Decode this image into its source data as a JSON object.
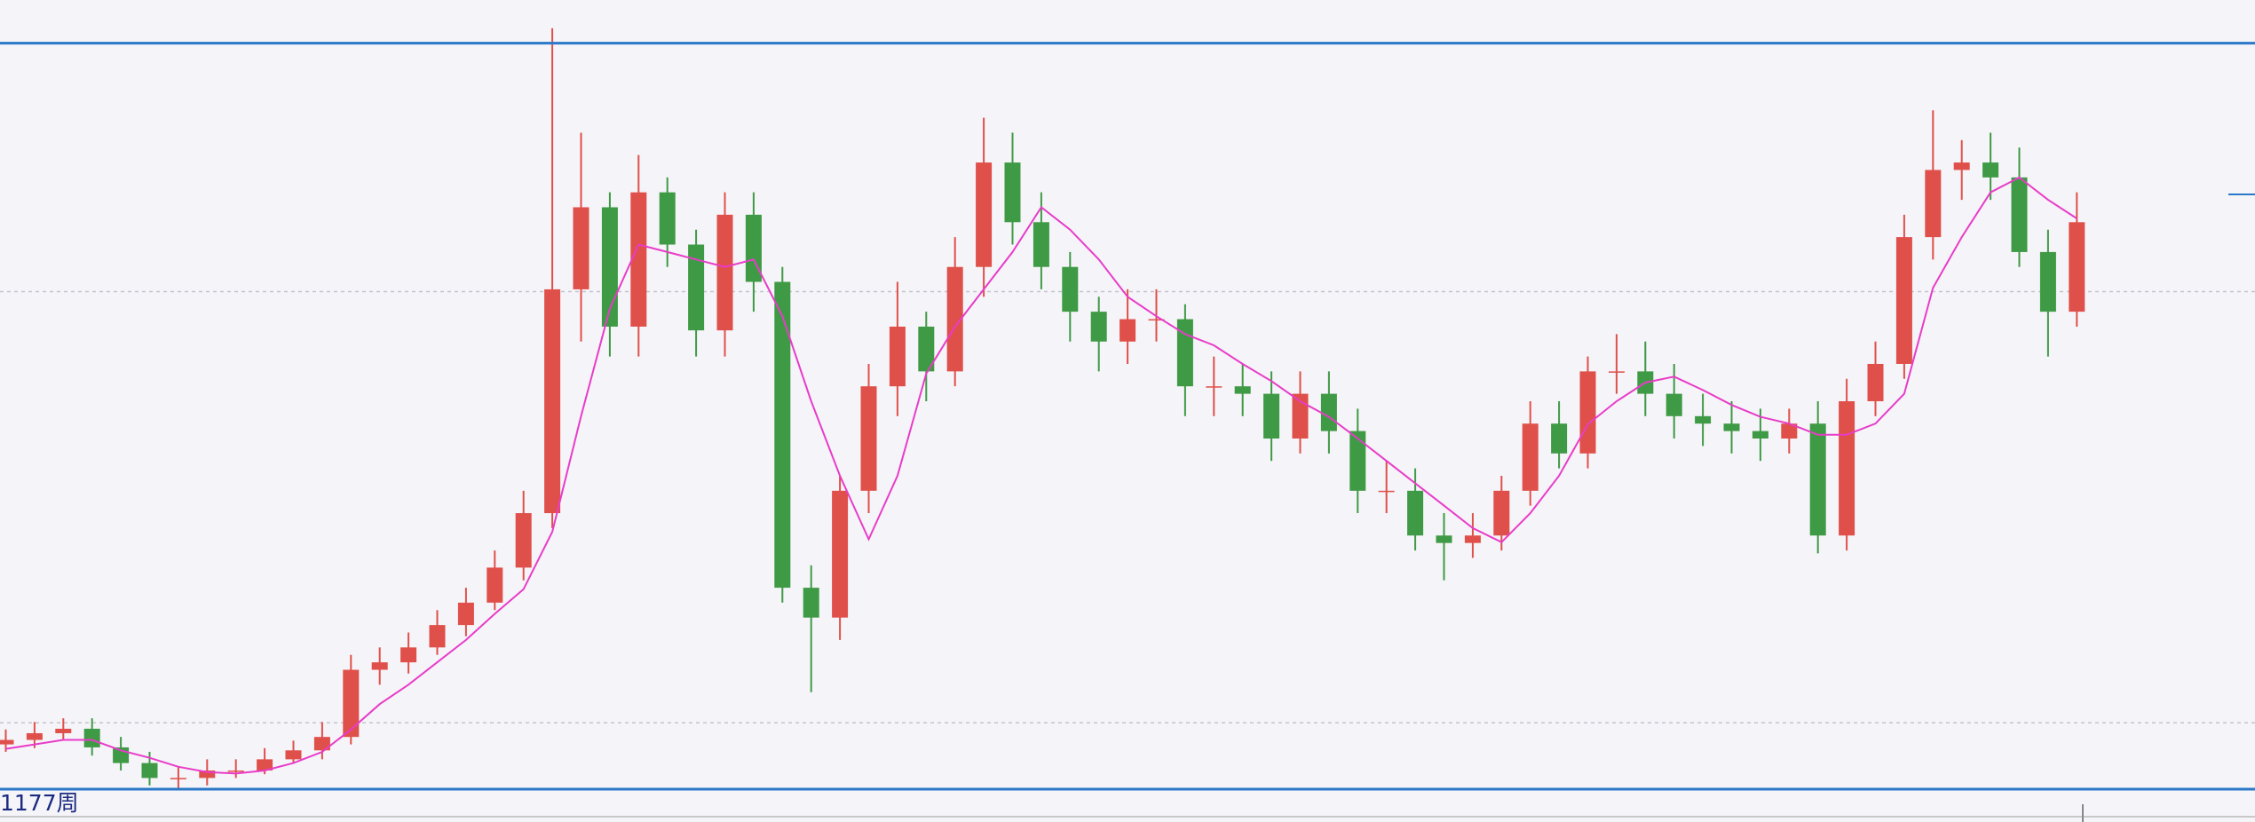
{
  "chart_data": {
    "type": "candlestick",
    "footer_label": "1177周",
    "ylim": [
      0,
      100
    ],
    "grid_lines": [
      8.9,
      66.7
    ],
    "up_color": "#e0504a",
    "down_color": "#3f9a45",
    "ma_color": "#e83cc8",
    "frame_color": "#2a78c8",
    "open": [
      6,
      6.6,
      7.5,
      8.1,
      5.6,
      3.5,
      1.5,
      1.5,
      2.5,
      2.5,
      4,
      5.2,
      7,
      16,
      17,
      19,
      22,
      25,
      29.7,
      37,
      67,
      78,
      62,
      80,
      73,
      61.5,
      77,
      68,
      27,
      23,
      40,
      54,
      62,
      56,
      70,
      84,
      76,
      70,
      64,
      60,
      63,
      63,
      54,
      54,
      53,
      47,
      53,
      48,
      40,
      40,
      34,
      33,
      34,
      40,
      49,
      45,
      56,
      56,
      53,
      50,
      49,
      48,
      47,
      49,
      34,
      52,
      57,
      74,
      83,
      84,
      82,
      72,
      64
    ],
    "high": [
      8,
      9,
      9.5,
      9.5,
      7,
      5,
      3,
      4,
      4,
      5.5,
      6.5,
      9,
      18,
      19,
      21,
      24,
      27,
      32,
      40,
      102,
      88,
      80,
      85,
      82,
      75,
      80,
      80,
      70,
      30,
      42,
      57,
      68,
      64,
      74,
      90,
      88,
      80,
      72,
      66,
      67,
      67,
      65,
      58,
      57,
      56,
      56,
      56,
      51,
      44,
      43,
      37,
      37,
      42,
      52,
      52,
      58,
      61,
      60,
      57,
      53,
      52,
      51,
      51,
      52,
      55,
      60,
      77,
      91,
      87,
      88,
      86,
      75,
      80
    ],
    "low": [
      5,
      5.5,
      6.5,
      4.5,
      2.5,
      0.5,
      0,
      0.5,
      1.5,
      2,
      3.5,
      4,
      6,
      14,
      15.5,
      18,
      20.5,
      24,
      28,
      35,
      60,
      58,
      58,
      70,
      58,
      58,
      64,
      25,
      13,
      20,
      37,
      50,
      52,
      54,
      66,
      73,
      67,
      60,
      56,
      57,
      60,
      50,
      50,
      50,
      44,
      45,
      45,
      37,
      37,
      32,
      28,
      31,
      32,
      38,
      43,
      43,
      53,
      50,
      47,
      46,
      45,
      44,
      45,
      31.6,
      32,
      50,
      55,
      71,
      79,
      79,
      70,
      58,
      62
    ],
    "close": [
      6.6,
      7.5,
      8.1,
      5.6,
      3.5,
      1.5,
      1.5,
      2.5,
      2.5,
      4,
      5.2,
      7,
      16,
      17,
      19,
      22,
      25,
      29.7,
      37,
      67,
      78,
      62,
      80,
      73,
      61.5,
      77,
      68,
      27,
      23,
      40,
      54,
      62,
      56,
      70,
      84,
      76,
      70,
      64,
      60,
      63,
      63,
      54,
      54,
      53,
      47,
      53,
      48,
      40,
      40,
      34,
      33,
      34,
      40,
      49,
      45,
      56,
      56,
      53,
      50,
      49,
      48,
      47,
      49,
      34,
      52,
      57,
      74,
      83,
      84,
      82,
      72,
      64,
      76
    ],
    "ma_values": [
      5.4,
      6,
      6.6,
      6.6,
      5.2,
      4.2,
      3,
      2.3,
      2.1,
      2.5,
      3.5,
      5,
      8,
      11.4,
      14,
      17,
      20,
      23.5,
      26.8,
      34.5,
      50,
      64.4,
      73,
      72,
      71,
      70,
      71,
      63.4,
      52,
      42,
      33.5,
      42,
      55.7,
      62,
      67,
      72,
      78,
      75,
      71,
      66,
      63.4,
      61,
      59.5,
      57,
      54.7,
      52,
      49.9,
      47,
      44,
      41,
      38,
      35,
      33.1,
      37,
      42,
      48.9,
      52,
      54.5,
      55.3,
      53.5,
      51.5,
      49.9,
      49,
      47.5,
      47.5,
      49,
      53,
      67.2,
      74,
      80,
      82,
      79,
      76.5
    ]
  }
}
